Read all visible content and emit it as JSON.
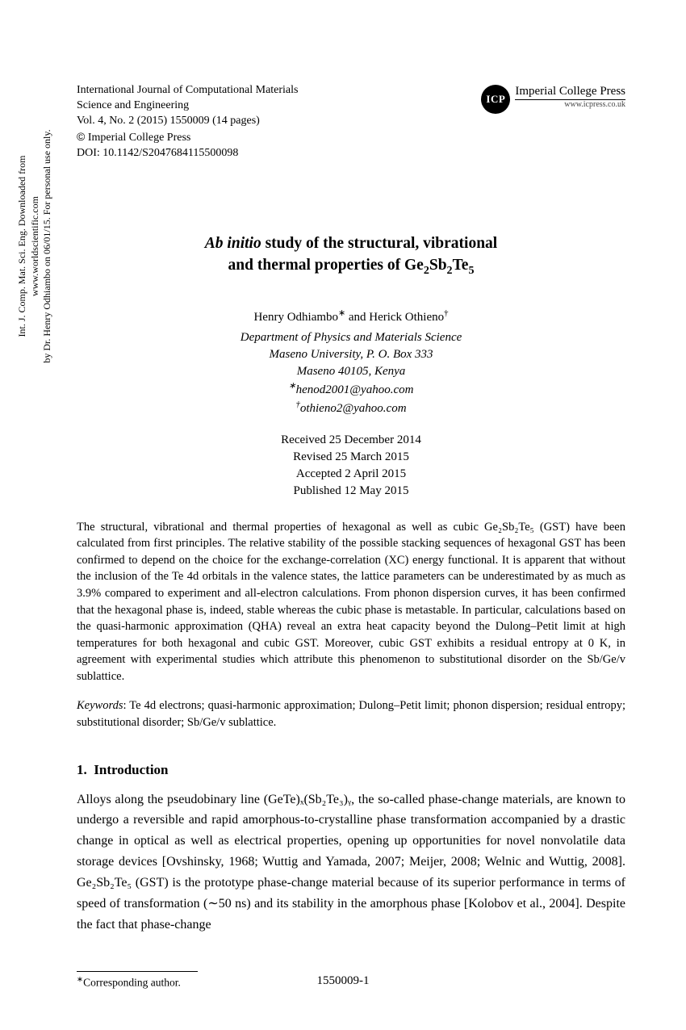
{
  "sidebar": {
    "line1": "Int. J. Comp. Mat. Sci. Eng. Downloaded from www.worldscientific.com",
    "line2": "by Dr. Henry Odhiambo on 06/01/15. For personal use only."
  },
  "journal": {
    "name": "International Journal of Computational Materials",
    "subname": "Science and Engineering",
    "vol": "Vol. 4, No. 2 (2015) 1550009 (14 pages)",
    "copyright": "Imperial College Press",
    "doi": "DOI: 10.1142/S2047684115500098"
  },
  "publisher": {
    "badge": "ICP",
    "name": "Imperial College Press",
    "url": "www.icpress.co.uk"
  },
  "title": {
    "line1_pre": "Ab initio",
    "line1_post": " study of the structural, vibrational",
    "line2": "and thermal properties of Ge",
    "line2_sub1": "2",
    "line2_mid1": "Sb",
    "line2_sub2": "2",
    "line2_mid2": "Te",
    "line2_sub3": "5"
  },
  "authors": {
    "a1": "Henry Odhiambo",
    "a1mark": "∗",
    "sep": " and ",
    "a2": "Herick Othieno",
    "a2mark": "†"
  },
  "affiliation": {
    "l1": "Department of Physics and Materials Science",
    "l2": "Maseno University, P. O. Box 333",
    "l3": "Maseno 40105, Kenya",
    "e1mark": "∗",
    "e1": "henod2001@yahoo.com",
    "e2mark": "†",
    "e2": "othieno2@yahoo.com"
  },
  "dates": {
    "received": "Received 25 December 2014",
    "revised": "Revised 25 March 2015",
    "accepted": "Accepted 2 April 2015",
    "published": "Published 12 May 2015"
  },
  "abstract": "The structural, vibrational and thermal properties of hexagonal as well as cubic Ge₂Sb₂Te₅ (GST) have been calculated from first principles. The relative stability of the possible stacking sequences of hexagonal GST has been confirmed to depend on the choice for the exchange-correlation (XC) energy functional. It is apparent that without the inclusion of the Te 4d orbitals in the valence states, the lattice parameters can be underestimated by as much as 3.9% compared to experiment and all-electron calculations. From phonon dispersion curves, it has been confirmed that the hexagonal phase is, indeed, stable whereas the cubic phase is metastable. In particular, calculations based on the quasi-harmonic approximation (QHA) reveal an extra heat capacity beyond the Dulong–Petit limit at high temperatures for both hexagonal and cubic GST. Moreover, cubic GST exhibits a residual entropy at 0 K, in agreement with experimental studies which attribute this phenomenon to substitutional disorder on the Sb/Ge/v sublattice.",
  "keywords_label": "Keywords",
  "keywords": ": Te 4d electrons; quasi-harmonic approximation; Dulong–Petit limit; phonon dispersion; residual entropy; substitutional disorder; Sb/Ge/v sublattice.",
  "section1": {
    "num": "1.",
    "title": "Introduction"
  },
  "body": "Alloys along the pseudobinary line (GeTe)ₓ(Sb₂Te₃)ᵧ, the so-called phase-change materials, are known to undergo a reversible and rapid amorphous-to-crystalline phase transformation accompanied by a drastic change in optical as well as electrical properties, opening up opportunities for novel nonvolatile data storage devices [Ovshinsky, 1968; Wuttig and Yamada, 2007; Meijer, 2008; Welnic and Wuttig, 2008]. Ge₂Sb₂Te₅ (GST) is the prototype phase-change material because of its superior performance in terms of speed of transformation (∼50 ns) and its stability in the amorphous phase [Kolobov et al., 2004]. Despite the fact that phase-change",
  "footnote": {
    "mark": "∗",
    "text": "Corresponding author."
  },
  "pageNumber": "1550009-1"
}
